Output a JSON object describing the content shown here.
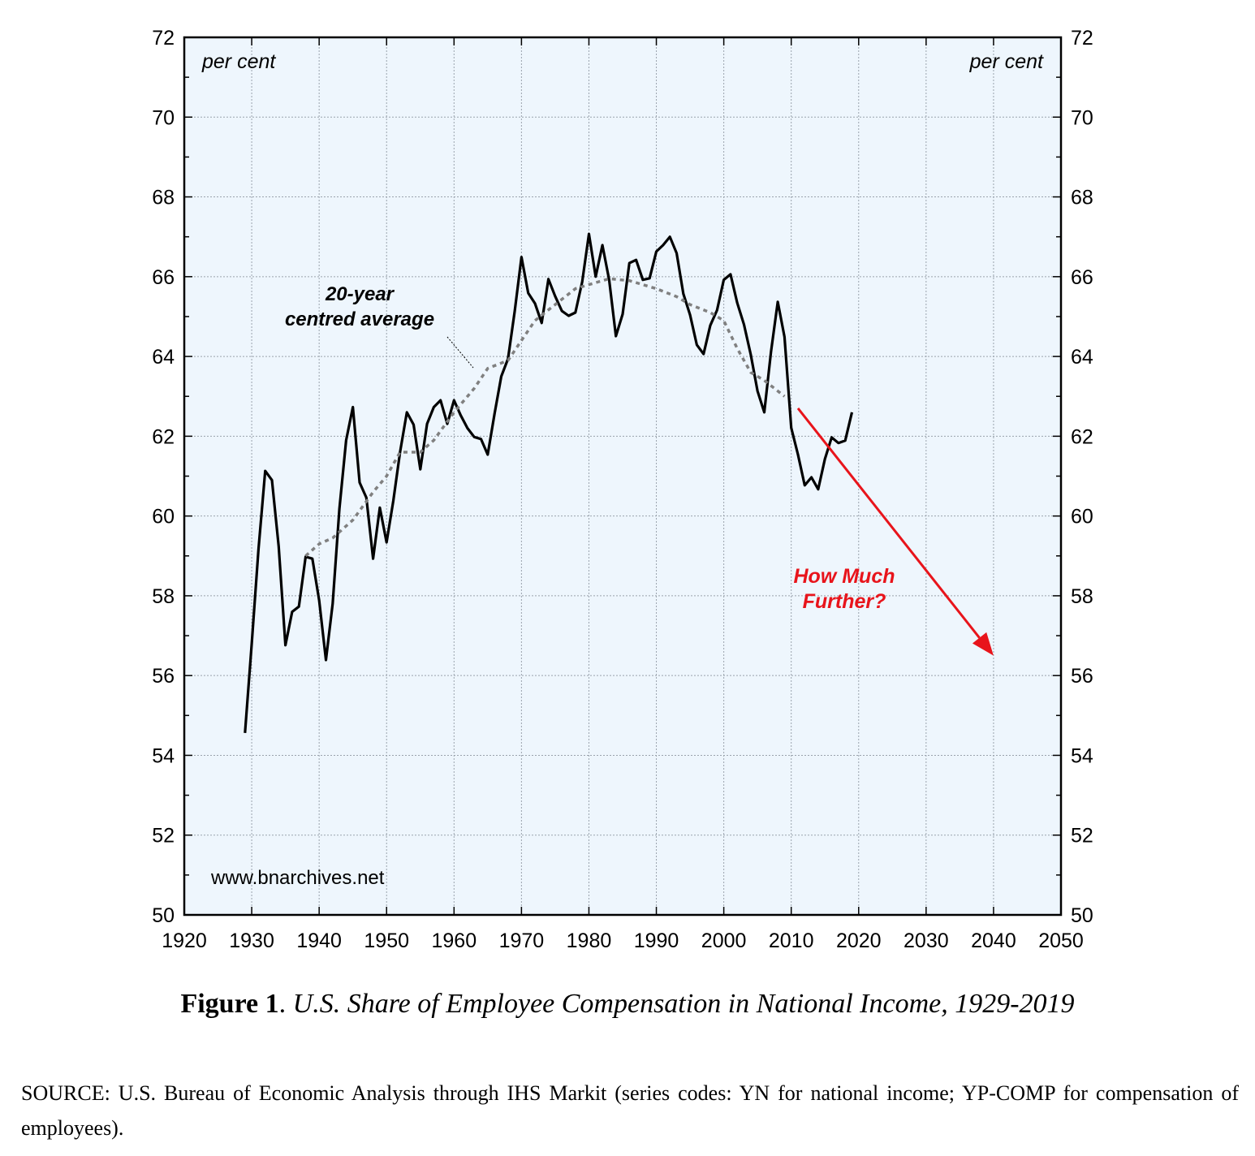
{
  "chart_data": {
    "type": "line",
    "title": "",
    "xlim": [
      1920,
      2050
    ],
    "ylim": [
      50,
      72
    ],
    "x_ticks": [
      1920,
      1930,
      1940,
      1950,
      1960,
      1970,
      1980,
      1990,
      2000,
      2010,
      2020,
      2030,
      2040,
      2050
    ],
    "y_ticks": [
      50,
      52,
      54,
      56,
      58,
      60,
      62,
      64,
      66,
      68,
      70,
      72
    ],
    "y_unit_left": "per cent",
    "y_unit_right": "per cent",
    "grid": true,
    "background_color": "#eef6fd",
    "watermark": "www.bnarchives.net",
    "series": [
      {
        "style": "solid",
        "color": "#000000",
        "x": [
          1929,
          1930,
          1931,
          1932,
          1933,
          1934,
          1935,
          1936,
          1937,
          1938,
          1939,
          1940,
          1941,
          1942,
          1943,
          1944,
          1945,
          1946,
          1947,
          1948,
          1949,
          1950,
          1951,
          1952,
          1953,
          1954,
          1955,
          1956,
          1957,
          1958,
          1959,
          1960,
          1961,
          1962,
          1963,
          1964,
          1965,
          1966,
          1967,
          1968,
          1969,
          1970,
          1971,
          1972,
          1973,
          1974,
          1975,
          1976,
          1977,
          1978,
          1979,
          1980,
          1981,
          1982,
          1983,
          1984,
          1985,
          1986,
          1987,
          1988,
          1989,
          1990,
          1991,
          1992,
          1993,
          1994,
          1995,
          1996,
          1997,
          1998,
          1999,
          2000,
          2001,
          2002,
          2003,
          2004,
          2005,
          2006,
          2007,
          2008,
          2009,
          2010,
          2011,
          2012,
          2013,
          2014,
          2015,
          2016,
          2017,
          2018,
          2019
        ],
        "y": [
          54.56,
          56.8,
          59.16,
          61.13,
          60.9,
          59.24,
          56.76,
          57.6,
          57.73,
          58.98,
          58.93,
          57.88,
          56.39,
          57.8,
          60.18,
          61.9,
          62.73,
          60.84,
          60.46,
          58.93,
          60.21,
          59.34,
          60.38,
          61.6,
          62.6,
          62.29,
          61.17,
          62.31,
          62.73,
          62.9,
          62.31,
          62.9,
          62.52,
          62.2,
          61.98,
          61.93,
          61.54,
          62.56,
          63.5,
          63.94,
          65.14,
          66.49,
          65.59,
          65.33,
          64.84,
          65.94,
          65.51,
          65.14,
          65.02,
          65.1,
          65.87,
          67.07,
          66.0,
          66.79,
          65.92,
          64.51,
          65.06,
          66.34,
          66.42,
          65.92,
          65.96,
          66.63,
          66.79,
          67.0,
          66.59,
          65.57,
          65.04,
          64.29,
          64.06,
          64.78,
          65.16,
          65.92,
          66.06,
          65.34,
          64.8,
          64.05,
          63.13,
          62.6,
          64.12,
          65.37,
          64.49,
          62.21,
          61.54,
          60.77,
          60.97,
          60.67,
          61.43,
          61.97,
          61.83,
          61.89,
          62.6
        ]
      },
      {
        "style": "dotted",
        "color": "#808080",
        "annotation": "20-year centred average",
        "x": [
          1938,
          1940,
          1942,
          1945,
          1948,
          1950,
          1952,
          1955,
          1957,
          1960,
          1963,
          1965,
          1968,
          1970,
          1972,
          1975,
          1978,
          1980,
          1983,
          1986,
          1990,
          1993,
          1995,
          1998,
          2000,
          2002,
          2004,
          2006,
          2009
        ],
        "y": [
          59.0,
          59.3,
          59.45,
          59.9,
          60.6,
          61.0,
          61.6,
          61.6,
          61.9,
          62.6,
          63.2,
          63.7,
          63.9,
          64.4,
          64.9,
          65.3,
          65.7,
          65.8,
          65.95,
          65.9,
          65.7,
          65.5,
          65.3,
          65.1,
          64.9,
          64.2,
          63.6,
          63.4,
          63.0
        ]
      }
    ],
    "annotations": {
      "average_label_line1": "20-year",
      "average_label_line2": "centred average",
      "arrow_label_line1": "How Much",
      "arrow_label_line2": "Further?",
      "arrow_color": "#e8141b",
      "arrow_from": [
        2011,
        62.7
      ],
      "arrow_to": [
        2040,
        56.5
      ]
    }
  },
  "caption": {
    "figure_label": "Figure 1",
    "separator": ". ",
    "title": "U.S. Share of Employee Compensation in National Income, 1929-2019"
  },
  "source": "SOURCE: U.S. Bureau of Economic Analysis through IHS Markit (series codes: YN for national income; YP-COMP for compensation of employees)."
}
